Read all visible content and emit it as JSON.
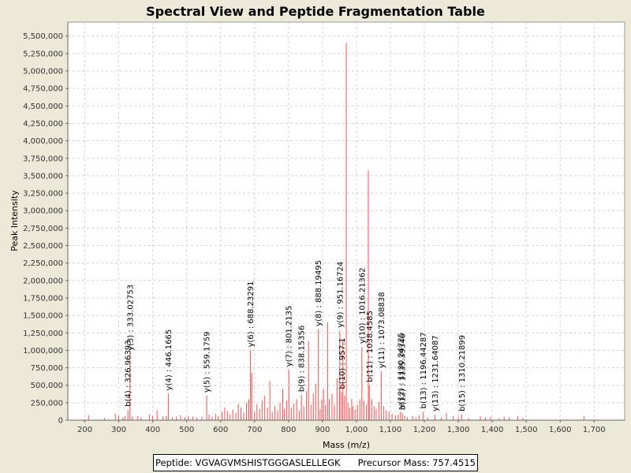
{
  "chart_data": {
    "type": "spectrum",
    "title": "Spectral View and Peptide Fragmentation Table",
    "xlabel": "Mass (m/z)",
    "ylabel": "Peak Intensity",
    "xlim": [
      150,
      1790
    ],
    "ylim": [
      0,
      5700000
    ],
    "x_ticks": [
      200,
      300,
      400,
      500,
      600,
      700,
      800,
      900,
      1000,
      1100,
      1200,
      1300,
      1400,
      1500,
      1600,
      1700
    ],
    "x_tick_labels": [
      "200",
      "300",
      "400",
      "500",
      "600",
      "700",
      "800",
      "900",
      "1,000",
      "1,100",
      "1,200",
      "1,300",
      "1,400",
      "1,500",
      "1,600",
      "1,700"
    ],
    "y_ticks": [
      0,
      250000,
      500000,
      750000,
      1000000,
      1250000,
      1500000,
      1750000,
      2000000,
      2250000,
      2500000,
      2750000,
      3000000,
      3250000,
      3500000,
      3750000,
      4000000,
      4250000,
      4500000,
      4750000,
      5000000,
      5250000,
      5500000
    ],
    "y_tick_labels": [
      "0",
      "250,000",
      "500,000",
      "750,000",
      "1,000,000",
      "1,250,000",
      "1,500,000",
      "1,750,000",
      "2,000,000",
      "2,250,000",
      "2,500,000",
      "2,750,000",
      "3,000,000",
      "3,250,000",
      "3,500,000",
      "3,750,000",
      "4,000,000",
      "4,250,000",
      "4,500,000",
      "4,750,000",
      "5,000,000",
      "5,250,000",
      "5,500,000"
    ],
    "peaks": [
      [
        211,
        70000
      ],
      [
        258,
        30000
      ],
      [
        290,
        90000
      ],
      [
        300,
        60000
      ],
      [
        312,
        40000
      ],
      [
        318,
        60000
      ],
      [
        327,
        150000
      ],
      [
        333,
        950000
      ],
      [
        340,
        50000
      ],
      [
        356,
        60000
      ],
      [
        366,
        40000
      ],
      [
        390,
        80000
      ],
      [
        400,
        60000
      ],
      [
        413,
        140000
      ],
      [
        430,
        50000
      ],
      [
        440,
        60000
      ],
      [
        446,
        380000
      ],
      [
        458,
        40000
      ],
      [
        470,
        50000
      ],
      [
        482,
        70000
      ],
      [
        495,
        40000
      ],
      [
        505,
        60000
      ],
      [
        518,
        50000
      ],
      [
        530,
        40000
      ],
      [
        545,
        50000
      ],
      [
        559,
        350000
      ],
      [
        566,
        80000
      ],
      [
        575,
        50000
      ],
      [
        585,
        90000
      ],
      [
        593,
        60000
      ],
      [
        604,
        120000
      ],
      [
        612,
        180000
      ],
      [
        620,
        130000
      ],
      [
        628,
        80000
      ],
      [
        636,
        150000
      ],
      [
        645,
        100000
      ],
      [
        652,
        230000
      ],
      [
        660,
        180000
      ],
      [
        668,
        110000
      ],
      [
        676,
        250000
      ],
      [
        683,
        300000
      ],
      [
        688,
        1000000
      ],
      [
        692,
        680000
      ],
      [
        700,
        120000
      ],
      [
        707,
        230000
      ],
      [
        715,
        160000
      ],
      [
        722,
        280000
      ],
      [
        730,
        350000
      ],
      [
        738,
        180000
      ],
      [
        745,
        560000
      ],
      [
        752,
        120000
      ],
      [
        760,
        200000
      ],
      [
        768,
        140000
      ],
      [
        775,
        250000
      ],
      [
        783,
        450000
      ],
      [
        788,
        160000
      ],
      [
        795,
        280000
      ],
      [
        801,
        720000
      ],
      [
        808,
        180000
      ],
      [
        815,
        240000
      ],
      [
        824,
        300000
      ],
      [
        832,
        140000
      ],
      [
        838,
        360000
      ],
      [
        845,
        200000
      ],
      [
        853,
        420000
      ],
      [
        859,
        1130000
      ],
      [
        866,
        220000
      ],
      [
        873,
        380000
      ],
      [
        880,
        520000
      ],
      [
        888,
        1300000
      ],
      [
        893,
        160000
      ],
      [
        898,
        300000
      ],
      [
        903,
        450000
      ],
      [
        909,
        220000
      ],
      [
        915,
        1400000
      ],
      [
        920,
        300000
      ],
      [
        928,
        380000
      ],
      [
        935,
        220000
      ],
      [
        943,
        600000
      ],
      [
        950,
        450000
      ],
      [
        951,
        1280000
      ],
      [
        956,
        400000
      ],
      [
        960,
        1150000
      ],
      [
        965,
        350000
      ],
      [
        970,
        5400000
      ],
      [
        975,
        250000
      ],
      [
        980,
        180000
      ],
      [
        986,
        300000
      ],
      [
        990,
        200000
      ],
      [
        996,
        150000
      ],
      [
        1003,
        220000
      ],
      [
        1010,
        300000
      ],
      [
        1016,
        1050000
      ],
      [
        1022,
        280000
      ],
      [
        1029,
        220000
      ],
      [
        1035,
        3580000
      ],
      [
        1038,
        500000
      ],
      [
        1045,
        300000
      ],
      [
        1052,
        200000
      ],
      [
        1058,
        160000
      ],
      [
        1066,
        260000
      ],
      [
        1073,
        700000
      ],
      [
        1080,
        200000
      ],
      [
        1088,
        140000
      ],
      [
        1096,
        120000
      ],
      [
        1105,
        90000
      ],
      [
        1115,
        70000
      ],
      [
        1123,
        80000
      ],
      [
        1130,
        120000
      ],
      [
        1135,
        100000
      ],
      [
        1142,
        60000
      ],
      [
        1150,
        40000
      ],
      [
        1165,
        60000
      ],
      [
        1175,
        40000
      ],
      [
        1185,
        70000
      ],
      [
        1196,
        120000
      ],
      [
        1210,
        40000
      ],
      [
        1231,
        80000
      ],
      [
        1250,
        40000
      ],
      [
        1265,
        100000
      ],
      [
        1285,
        60000
      ],
      [
        1300,
        40000
      ],
      [
        1310,
        80000
      ],
      [
        1330,
        30000
      ],
      [
        1365,
        60000
      ],
      [
        1380,
        40000
      ],
      [
        1395,
        50000
      ],
      [
        1420,
        30000
      ],
      [
        1435,
        50000
      ],
      [
        1450,
        40000
      ],
      [
        1475,
        60000
      ],
      [
        1490,
        30000
      ],
      [
        1670,
        60000
      ]
    ],
    "annotations": [
      {
        "label": "b(4) : 326.96393",
        "x": 327
      },
      {
        "label": "y(3) : 333.02753",
        "x": 333
      },
      {
        "label": "y(4) : 446.1665",
        "x": 446
      },
      {
        "label": "y(5) : 559.1759",
        "x": 559
      },
      {
        "label": "y(6) : 688.23291",
        "x": 688
      },
      {
        "label": "y(7) : 801.2135",
        "x": 801
      },
      {
        "label": "b(9) : 838.15356",
        "x": 838
      },
      {
        "label": "y(8) : 888.19495",
        "x": 888
      },
      {
        "label": "y(9) : 951.16724",
        "x": 951
      },
      {
        "label": "b(10) : 957.1",
        "x": 957
      },
      {
        "label": "y(10) : 1016.21362",
        "x": 1016
      },
      {
        "label": "b(11) : 1038.4585",
        "x": 1038
      },
      {
        "label": "y(11) : 1073.08838",
        "x": 1073
      },
      {
        "label": "y(12) : 1130.24725",
        "x": 1130
      },
      {
        "label": "b(12) : 1135.39346",
        "x": 1135
      },
      {
        "label": "b(13) : 1196.44287",
        "x": 1196
      },
      {
        "label": "y(13) : 1231.64087",
        "x": 1231
      },
      {
        "label": "b(15) : 1310.21899",
        "x": 1310
      }
    ]
  },
  "legend": {
    "peptide": "Peptide: VGVAGVMSHISTGGGASLELLEGK",
    "precursor": "Precursor Mass: 757.4515"
  },
  "colors": {
    "peak": "#f05050",
    "annotation_peak": "#d00000",
    "grid": "#d4d4d4",
    "plot_bg": "#ffffff",
    "page_bg": "#ece9d8"
  }
}
